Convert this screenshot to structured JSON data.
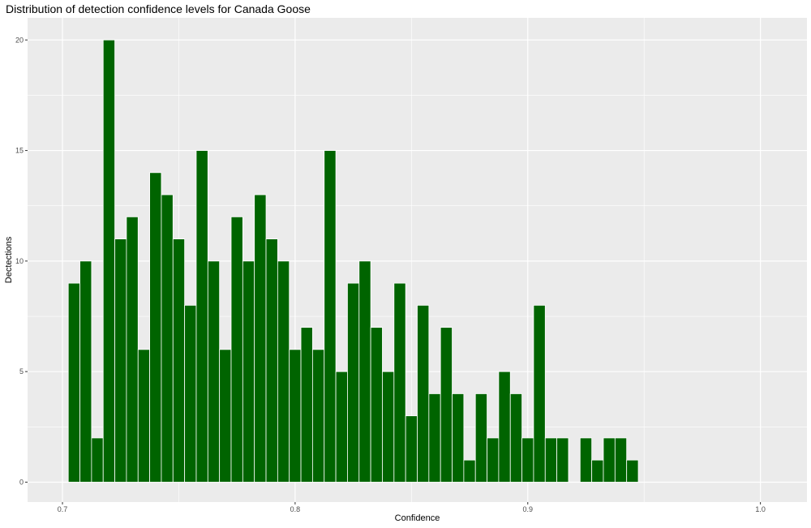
{
  "chart_data": {
    "type": "bar",
    "title": "Distribution of detection confidence levels for Canada Goose",
    "xlabel": "Confidence",
    "ylabel": "Dectections",
    "xlim": [
      0.685,
      1.02
    ],
    "ylim": [
      -0.9,
      21.0
    ],
    "x_ticks": [
      0.7,
      0.8,
      0.9,
      1.0
    ],
    "x_tick_labels": [
      "0.7",
      "0.8",
      "0.9",
      "1.0"
    ],
    "y_ticks": [
      0,
      5,
      10,
      15,
      20
    ],
    "y_tick_labels": [
      "0",
      "5",
      "10",
      "15",
      "20"
    ],
    "bin_width": 0.005,
    "grid": true,
    "bar_color": "#006400",
    "bar_outline": "#ffffff",
    "panel_background": "#ebebeb",
    "grid_color": "#ffffff",
    "x": [
      0.705,
      0.71,
      0.715,
      0.72,
      0.725,
      0.73,
      0.735,
      0.74,
      0.745,
      0.75,
      0.755,
      0.76,
      0.765,
      0.77,
      0.775,
      0.78,
      0.785,
      0.79,
      0.795,
      0.8,
      0.805,
      0.81,
      0.815,
      0.82,
      0.825,
      0.83,
      0.835,
      0.84,
      0.845,
      0.85,
      0.855,
      0.86,
      0.865,
      0.87,
      0.875,
      0.88,
      0.885,
      0.89,
      0.895,
      0.9,
      0.905,
      0.91,
      0.915,
      0.92,
      0.925,
      0.93,
      0.935,
      0.94,
      0.945
    ],
    "values": [
      9,
      10,
      2,
      20,
      11,
      12,
      6,
      14,
      13,
      11,
      8,
      15,
      10,
      6,
      12,
      10,
      13,
      11,
      10,
      6,
      7,
      6,
      15,
      5,
      9,
      10,
      7,
      5,
      9,
      3,
      8,
      4,
      7,
      4,
      1,
      4,
      2,
      5,
      4,
      2,
      8,
      2,
      2,
      0,
      2,
      1,
      2,
      2,
      1
    ]
  }
}
